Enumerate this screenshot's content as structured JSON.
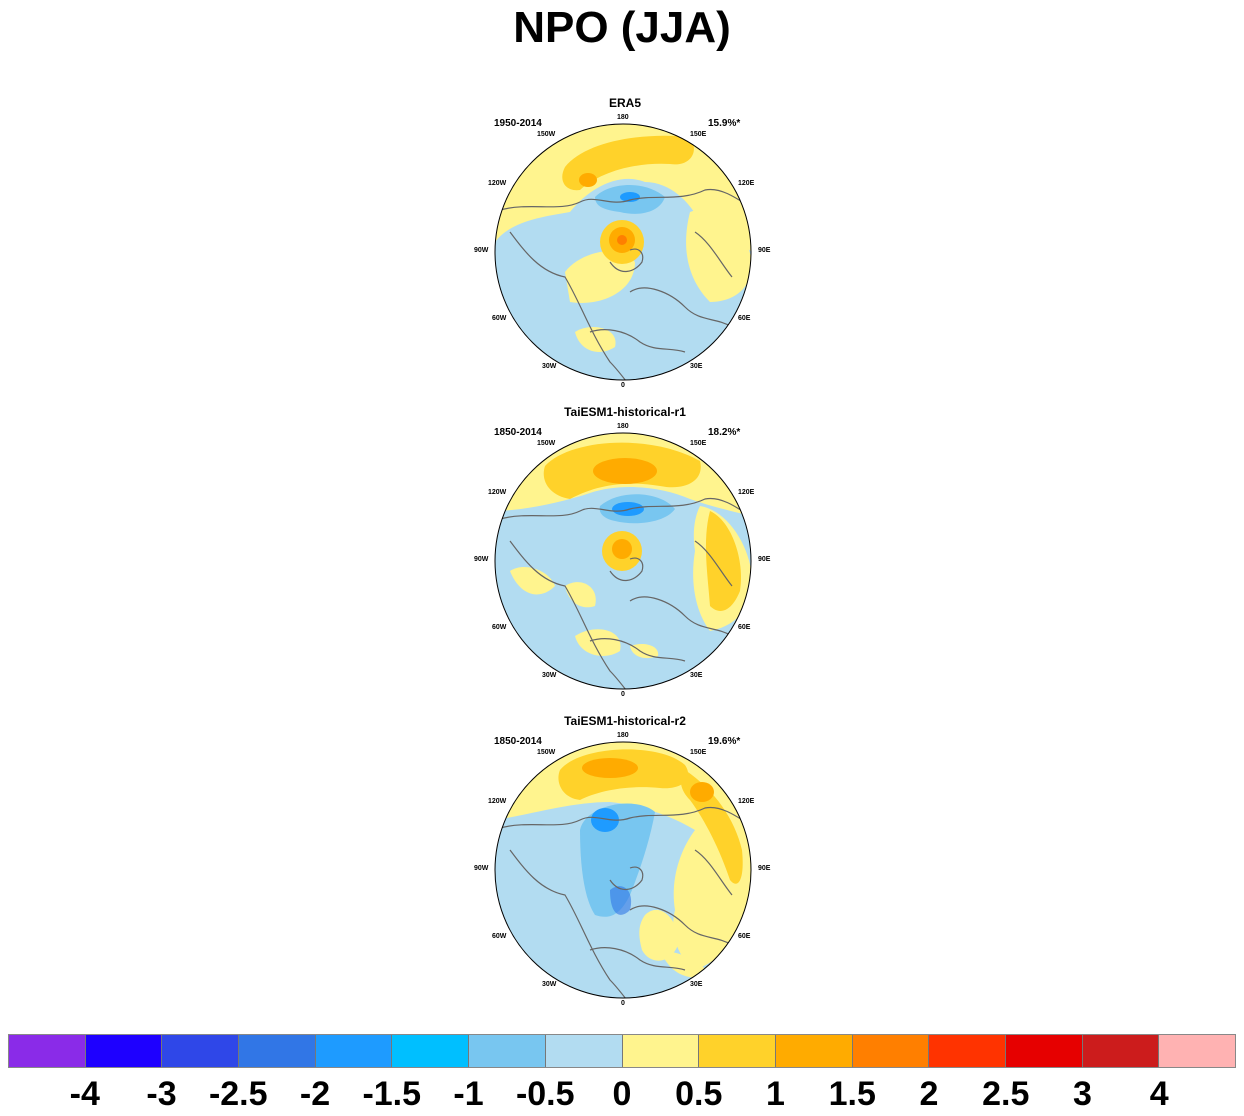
{
  "title": "NPO (JJA)",
  "panels": [
    {
      "name": "ERA5",
      "period": "1950-2014",
      "variance": "15.9%*"
    },
    {
      "name": "TaiESM1-historical-r1",
      "period": "1850-2014",
      "variance": "18.2%*"
    },
    {
      "name": "TaiESM1-historical-r2",
      "period": "1850-2014",
      "variance": "19.6%*"
    }
  ],
  "longitude_labels": [
    "180",
    "150W",
    "150E",
    "120W",
    "120E",
    "90W",
    "90E",
    "60W",
    "60E",
    "30W",
    "30E",
    "0"
  ],
  "colorbar": {
    "colors": [
      "#8a2be8",
      "#1e00ff",
      "#2f47e8",
      "#3176e6",
      "#1e9bff",
      "#00bfff",
      "#78c6f0",
      "#b2dcf1",
      "#fff48e",
      "#ffd22a",
      "#ffab00",
      "#ff7f00",
      "#ff3300",
      "#e60000",
      "#cc1c1c",
      "#ffb2b2"
    ],
    "labels": [
      "-4",
      "-3",
      "-2.5",
      "-2",
      "-1.5",
      "-1",
      "-0.5",
      "0",
      "0.5",
      "1",
      "1.5",
      "2",
      "2.5",
      "3",
      "4"
    ]
  }
}
